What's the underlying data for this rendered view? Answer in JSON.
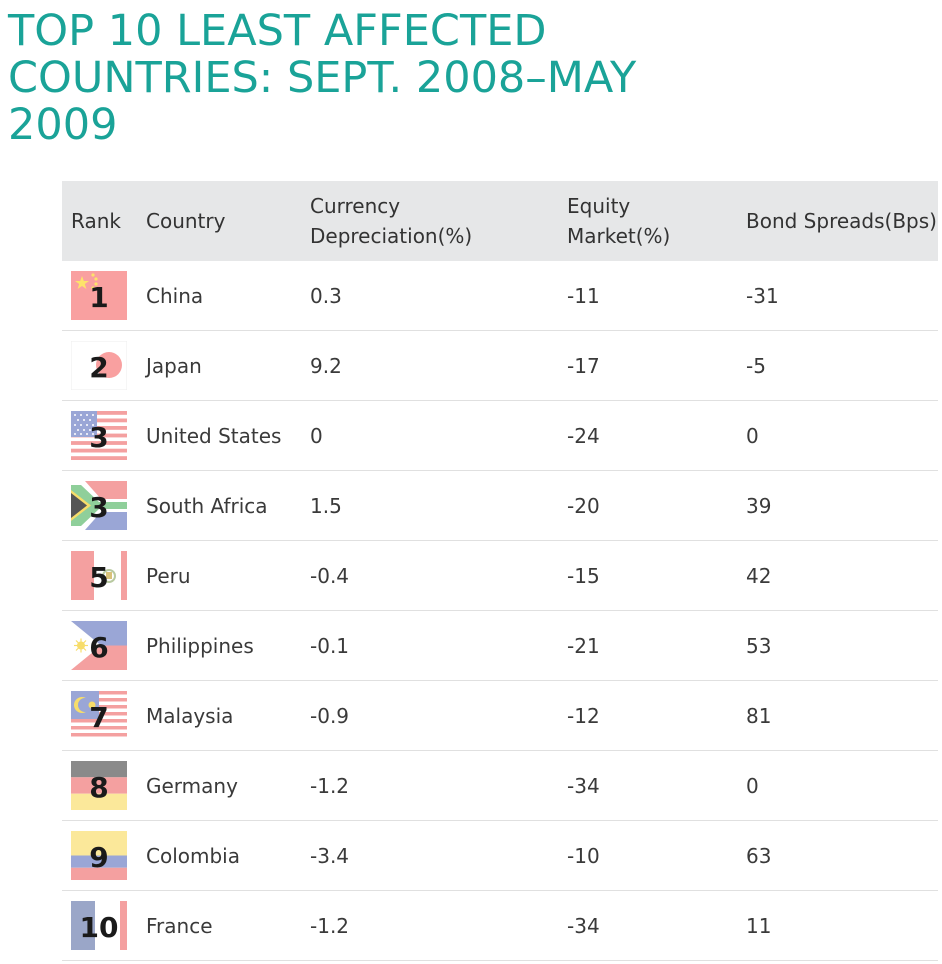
{
  "title": "TOP 10 LEAST AFFECTED COUNTRIES: SEPT. 2008–MAY 2009",
  "headers": {
    "rank": "Rank",
    "country": "Country",
    "currency_line1": "Currency",
    "currency_line2": "Depreciation(%)",
    "equity_line1": "Equity",
    "equity_line2": "Market(%)",
    "bond": "Bond Spreads(Bps)"
  },
  "rows": [
    {
      "rank": "1",
      "country": "China",
      "currency": "0.3",
      "equity": "-11",
      "bond": "-31",
      "flag": "china-flag-icon"
    },
    {
      "rank": "2",
      "country": "Japan",
      "currency": "9.2",
      "equity": "-17",
      "bond": "-5",
      "flag": "japan-flag-icon"
    },
    {
      "rank": "3",
      "country": "United States",
      "currency": "0",
      "equity": "-24",
      "bond": "0",
      "flag": "usa-flag-icon"
    },
    {
      "rank": "3",
      "country": "South Africa",
      "currency": "1.5",
      "equity": "-20",
      "bond": "39",
      "flag": "south-africa-flag-icon"
    },
    {
      "rank": "5",
      "country": "Peru",
      "currency": "-0.4",
      "equity": "-15",
      "bond": "42",
      "flag": "peru-flag-icon"
    },
    {
      "rank": "6",
      "country": "Philippines",
      "currency": "-0.1",
      "equity": "-21",
      "bond": "53",
      "flag": "philippines-flag-icon"
    },
    {
      "rank": "7",
      "country": "Malaysia",
      "currency": "-0.9",
      "equity": "-12",
      "bond": "81",
      "flag": "malaysia-flag-icon"
    },
    {
      "rank": "8",
      "country": "Germany",
      "currency": "-1.2",
      "equity": "-34",
      "bond": "0",
      "flag": "germany-flag-icon"
    },
    {
      "rank": "9",
      "country": "Colombia",
      "currency": "-3.4",
      "equity": "-10",
      "bond": "63",
      "flag": "colombia-flag-icon"
    },
    {
      "rank": "10",
      "country": "France",
      "currency": "-1.2",
      "equity": "-34",
      "bond": "11",
      "flag": "france-flag-icon"
    }
  ]
}
